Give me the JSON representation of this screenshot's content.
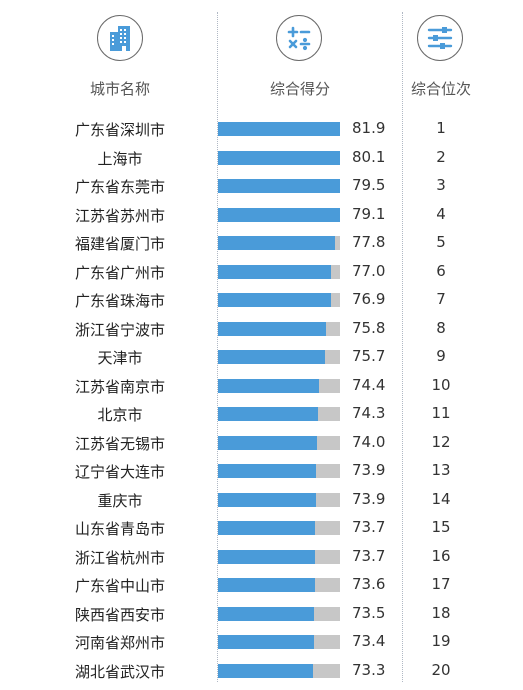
{
  "headers": {
    "city": {
      "label": "城市名称",
      "icon": "buildings-icon"
    },
    "score": {
      "label": "综合得分",
      "icon": "calculator-icon"
    },
    "rank": {
      "label": "综合位次",
      "icon": "sliders-icon"
    }
  },
  "colors": {
    "bar": "#4a9bd9",
    "track": "#c7c7c7",
    "icon": "#4a9bd9"
  },
  "chart_data": {
    "type": "bar",
    "orientation": "horizontal",
    "xlim": [
      0,
      100
    ],
    "categories": [
      "广东省深圳市",
      "上海市",
      "广东省东莞市",
      "江苏省苏州市",
      "福建省厦门市",
      "广东省广州市",
      "广东省珠海市",
      "浙江省宁波市",
      "天津市",
      "江苏省南京市",
      "北京市",
      "江苏省无锡市",
      "辽宁省大连市",
      "重庆市",
      "山东省青岛市",
      "浙江省杭州市",
      "广东省中山市",
      "陕西省西安市",
      "河南省郑州市",
      "湖北省武汉市"
    ],
    "values": [
      81.9,
      80.1,
      79.5,
      79.1,
      77.8,
      77.0,
      76.9,
      75.8,
      75.7,
      74.4,
      74.3,
      74.0,
      73.9,
      73.9,
      73.7,
      73.7,
      73.6,
      73.5,
      73.4,
      73.3
    ],
    "value_labels": [
      "81.9",
      "80.1",
      "79.5",
      "79.1",
      "77.8",
      "77.0",
      "76.9",
      "75.8",
      "75.7",
      "74.4",
      "74.3",
      "74.0",
      "73.9",
      "73.9",
      "73.7",
      "73.7",
      "73.6",
      "73.5",
      "73.4",
      "73.3"
    ],
    "ranks": [
      "1",
      "2",
      "3",
      "4",
      "5",
      "6",
      "7",
      "8",
      "9",
      "10",
      "11",
      "12",
      "13",
      "14",
      "15",
      "16",
      "17",
      "18",
      "19",
      "20"
    ]
  }
}
